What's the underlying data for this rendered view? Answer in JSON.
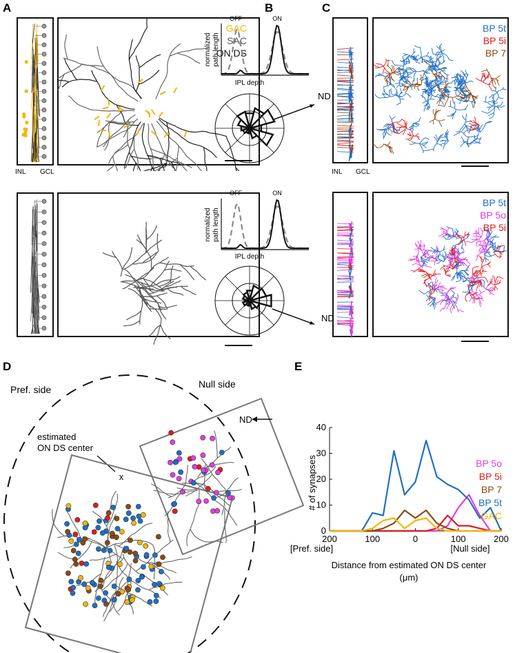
{
  "colors": {
    "gac": "#f2b705",
    "sac": "#555555",
    "ondsc": "#111111",
    "bp5t": "#1f6fc4",
    "bp5i": "#e31a1c",
    "bp7": "#8b4a12",
    "bp5o": "#e23de0"
  },
  "panels": {
    "a_letter": "A",
    "b_letter": "B",
    "c_letter": "C",
    "d_letter": "D",
    "e_letter": "E"
  },
  "panelA": {
    "legend": [
      "GAC",
      "SAC",
      "ON DS"
    ],
    "inl": "INL",
    "gcl": "GCL"
  },
  "panelB": {
    "off": "OFF",
    "on": "ON",
    "ylabel_1": "normalized",
    "ylabel_2": "path length",
    "xlabel": "IPL depth",
    "nd": "ND"
  },
  "panelC": {
    "legend_top": [
      "BP 5t",
      "BP 5i",
      "BP 7"
    ],
    "legend_bottom": [
      "BP 5t",
      "BP 5o",
      "BP 5i"
    ],
    "inl": "INL",
    "gcl": "GCL"
  },
  "panelD": {
    "pref_side": "Pref. side",
    "null_side": "Null side",
    "nd": "ND",
    "center_1": "estimated",
    "center_2": "ON DS center",
    "marker": "x"
  },
  "chart_data": {
    "type": "line",
    "title": "",
    "xlabel_1": "Distance from estimated ON DS center",
    "xlabel_2": "(μm)",
    "ylabel": "# of synapses",
    "xlim": [
      200,
      -200
    ],
    "ylim": [
      0,
      40
    ],
    "xtick_labels": [
      "200",
      "100",
      "0",
      "100",
      "200"
    ],
    "xticks": [
      200,
      100,
      0,
      -100,
      -200
    ],
    "yticks": [
      0,
      10,
      20,
      30,
      40
    ],
    "side_labels": [
      "[Pref. side]",
      "[Null side]"
    ],
    "x": [
      200,
      175,
      150,
      125,
      100,
      75,
      50,
      25,
      0,
      -25,
      -50,
      -75,
      -100,
      -125,
      -150,
      -175,
      -200
    ],
    "series": [
      {
        "name": "BP 5o",
        "color": "#e23de0",
        "values": [
          0,
          0,
          0,
          0,
          0,
          0,
          0,
          0,
          0,
          0,
          0,
          2,
          9,
          14,
          6,
          0,
          0
        ]
      },
      {
        "name": "BP 5i",
        "color": "#e31a1c",
        "values": [
          0,
          0,
          0,
          0,
          0,
          0,
          0,
          0,
          0,
          0,
          1,
          6,
          2,
          2,
          1,
          0,
          0
        ]
      },
      {
        "name": "BP 7",
        "color": "#8b4a12",
        "values": [
          0,
          0,
          0,
          0,
          0,
          1,
          3,
          8,
          5,
          8,
          3,
          1,
          0,
          0,
          0,
          0,
          0
        ]
      },
      {
        "name": "BP 5t",
        "color": "#1f6fc4",
        "values": [
          0,
          0,
          0,
          0,
          7,
          6,
          31,
          14,
          19,
          35,
          21,
          18,
          16,
          12,
          5,
          9,
          0
        ]
      },
      {
        "name": "GAC",
        "color": "#f2b705",
        "values": [
          0,
          0,
          0,
          0,
          1,
          4,
          5,
          1,
          4,
          5,
          1,
          0,
          0,
          0,
          0,
          0,
          0
        ]
      }
    ]
  }
}
